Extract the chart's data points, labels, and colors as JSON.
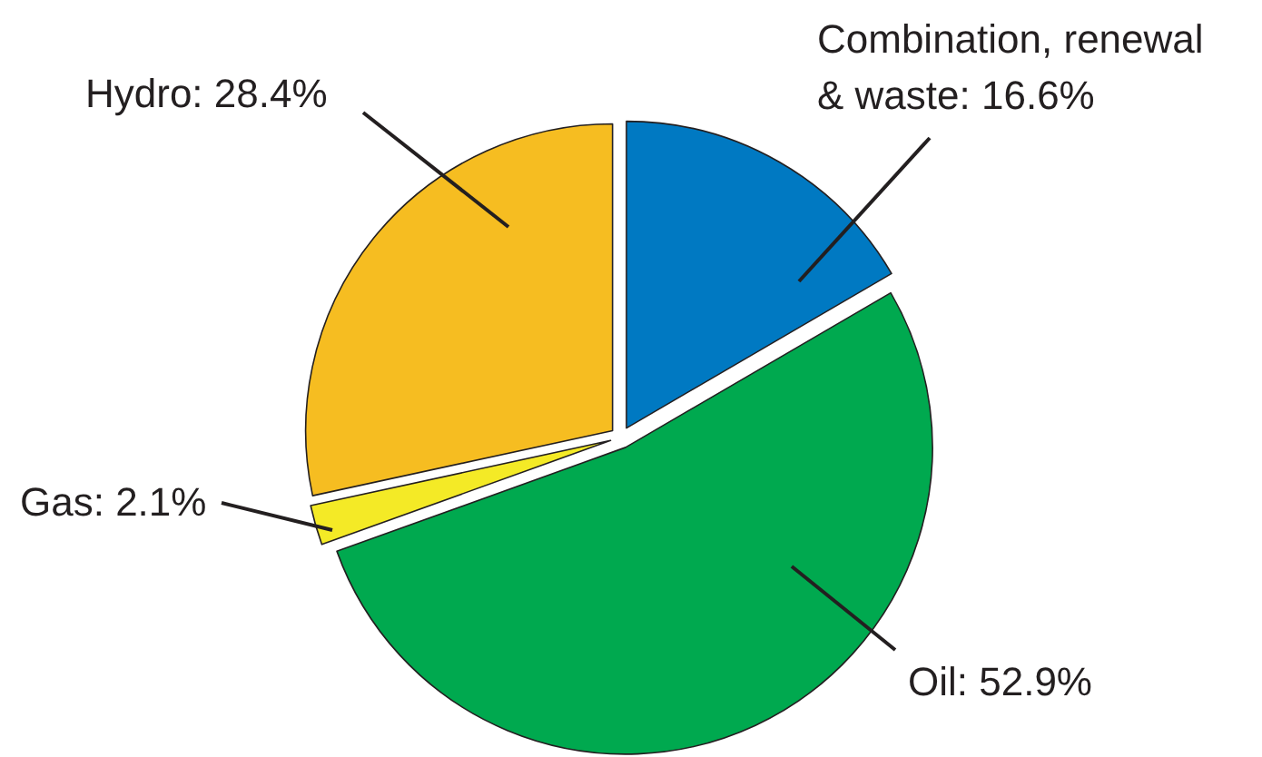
{
  "chart_data": {
    "type": "pie",
    "categories": [
      "Combination, renewal & waste",
      "Oil",
      "Gas",
      "Hydro"
    ],
    "values": [
      16.6,
      52.9,
      2.1,
      28.4
    ],
    "colors": [
      "#0079c2",
      "#00a94f",
      "#f4ea26",
      "#f6bd21"
    ],
    "value_labels": [
      "16.6%",
      "52.9%",
      "2.1%",
      "28.4%"
    ]
  }
}
